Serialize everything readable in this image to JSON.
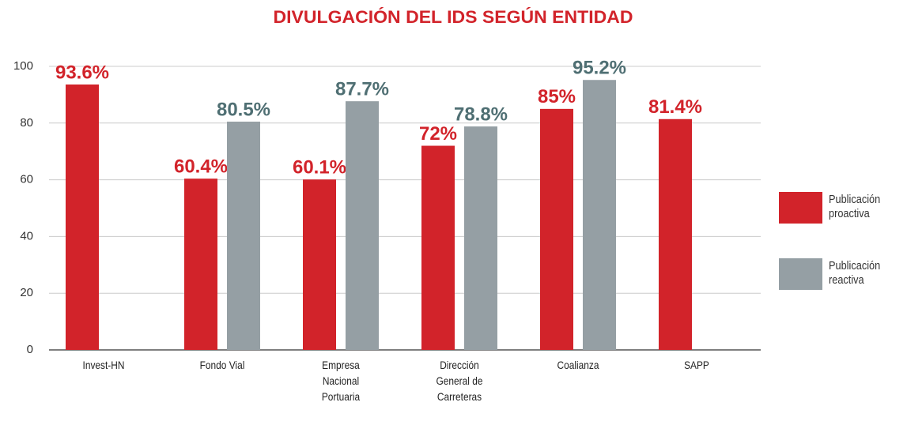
{
  "chart_data": {
    "type": "bar",
    "title": "DIVULGACIÓN DEL IDS SEGÚN ENTIDAD",
    "categories": [
      "Invest-HN",
      "Fondo Vial",
      "Empresa\nNacional\nPortuaria",
      "Dirección\nGeneral de\nCarreteras",
      "Coalianza",
      "SAPP"
    ],
    "series": [
      {
        "name": "Publicación\nproactiva",
        "color": "#d2232a",
        "label_color": "#d2232a",
        "values": [
          93.6,
          60.4,
          60.1,
          72,
          85,
          81.4
        ],
        "value_labels": [
          "93.6%",
          "60.4%",
          "60.1%",
          "72%",
          "85%",
          "81.4%"
        ]
      },
      {
        "name": "Publicación\nreactiva",
        "color": "#959fa4",
        "label_color": "#4f6f73",
        "values": [
          null,
          80.5,
          87.7,
          78.8,
          95.2,
          null
        ],
        "value_labels": [
          null,
          "80.5%",
          "87.7%",
          "78.8%",
          "95.2%",
          null
        ]
      }
    ],
    "ylim": [
      0,
      100
    ],
    "yticks": [
      0,
      20,
      40,
      60,
      80,
      100
    ],
    "grid": true,
    "legend": "right"
  }
}
